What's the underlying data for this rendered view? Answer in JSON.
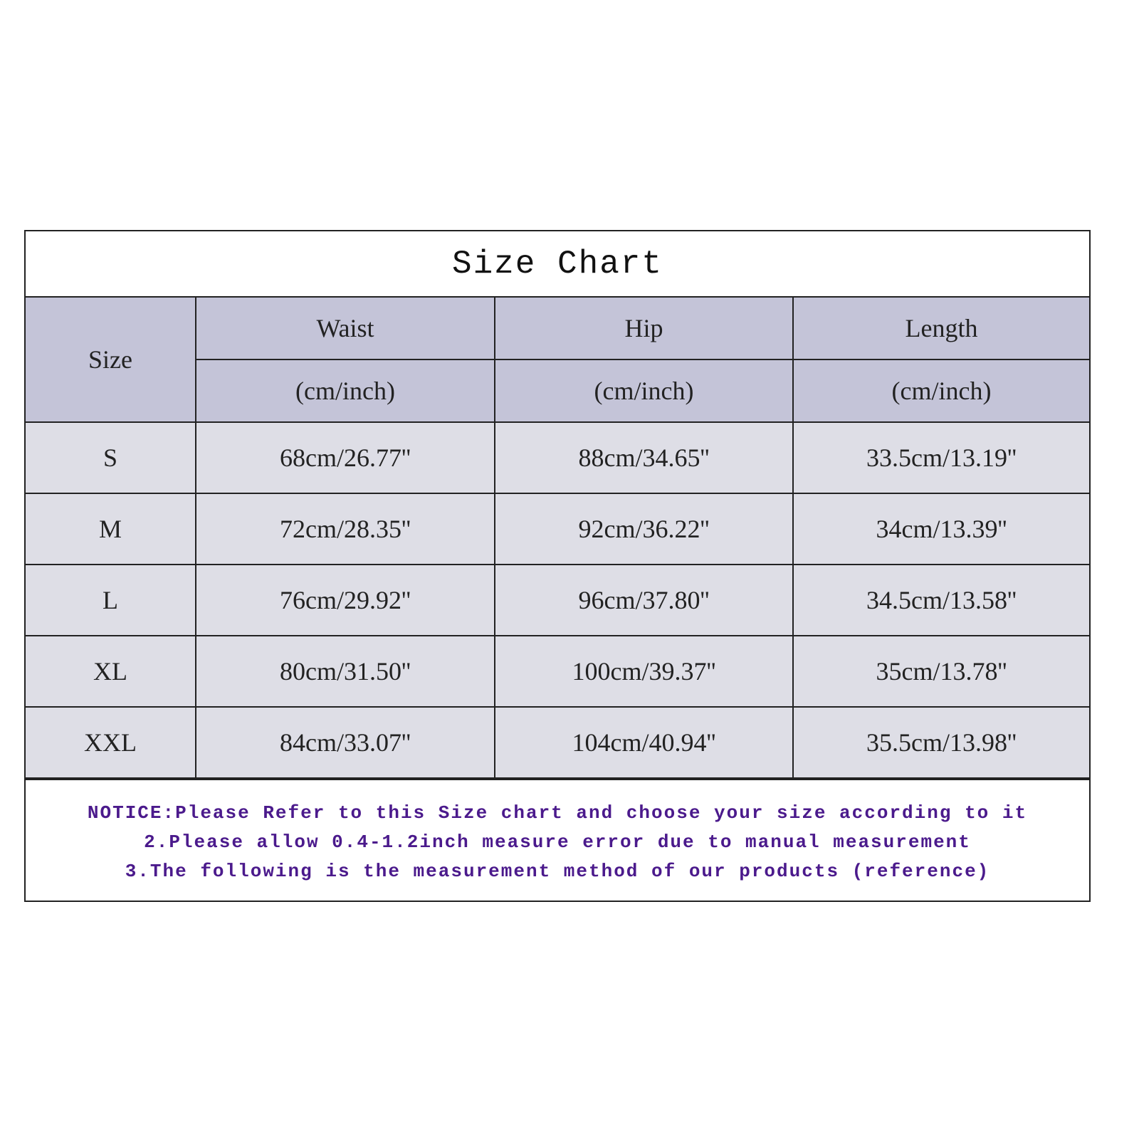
{
  "title": "Size Chart",
  "header": {
    "size": "Size",
    "columns": [
      "Waist",
      "Hip",
      "Length"
    ],
    "unit": "(cm/inch)"
  },
  "rows": [
    {
      "size": "S",
      "waist": "68cm/26.77''",
      "hip": "88cm/34.65''",
      "length": "33.5cm/13.19''"
    },
    {
      "size": "M",
      "waist": "72cm/28.35''",
      "hip": "92cm/36.22''",
      "length": "34cm/13.39''"
    },
    {
      "size": "L",
      "waist": "76cm/29.92''",
      "hip": "96cm/37.80''",
      "length": "34.5cm/13.58''"
    },
    {
      "size": "XL",
      "waist": "80cm/31.50''",
      "hip": "100cm/39.37''",
      "length": "35cm/13.78''"
    },
    {
      "size": "XXL",
      "waist": "84cm/33.07''",
      "hip": "104cm/40.94''",
      "length": "35.5cm/13.98''"
    }
  ],
  "notice": [
    "NOTICE:Please Refer to this Size chart and choose your size according to it",
    "2.Please allow 0.4-1.2inch measure error due to manual measurement",
    "3.The following is the measurement method of our products (reference)"
  ],
  "colors": {
    "header_bg": "#c4c4d8",
    "row_bg": "#dedee6",
    "notice_text": "#4b1a8c"
  }
}
